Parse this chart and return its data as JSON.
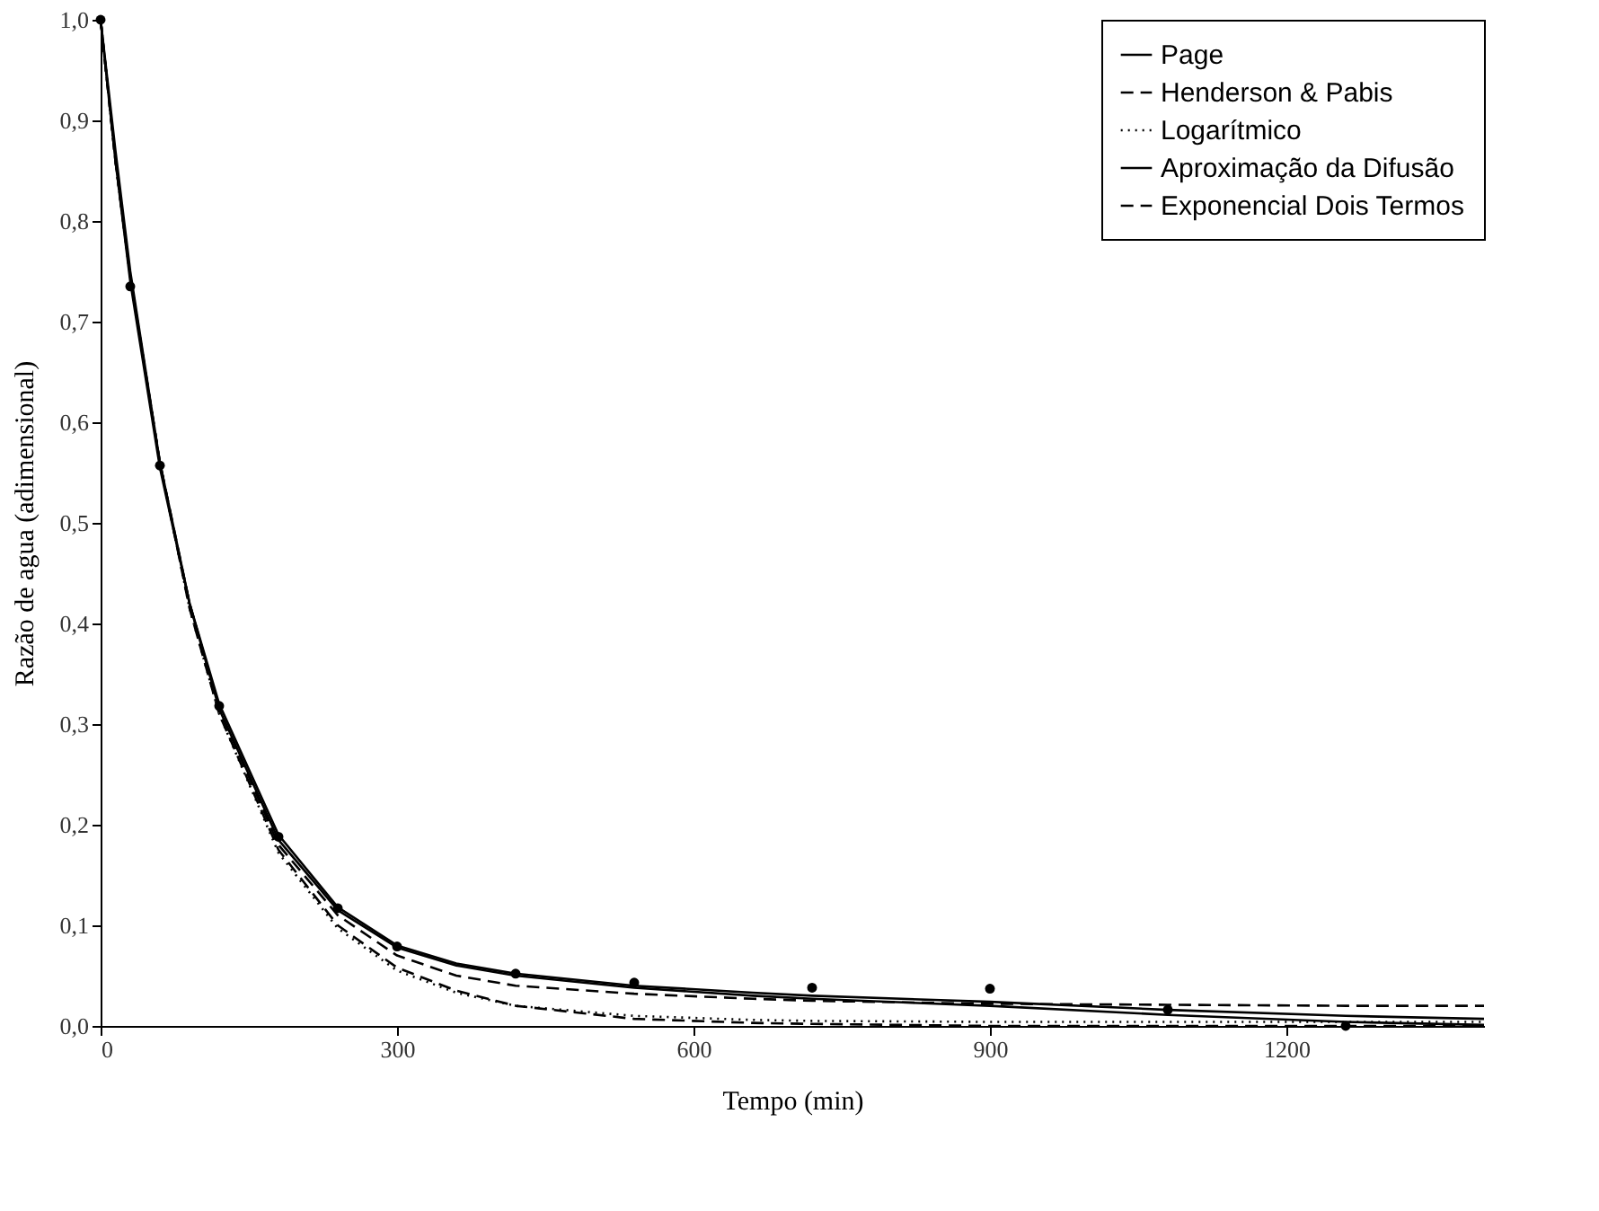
{
  "chart_data": {
    "type": "line",
    "xlabel": "Tempo (min)",
    "ylabel": "Razão de agua (adimensional)",
    "x": [
      0,
      15,
      30,
      60,
      90,
      120,
      180,
      240,
      300,
      360,
      420,
      540,
      660,
      720,
      900,
      1080,
      1260,
      1400
    ],
    "xlim": [
      0,
      1400
    ],
    "xticks": [
      0,
      300,
      600,
      900,
      1200
    ],
    "ylim": [
      0,
      1
    ],
    "yticks": [
      {
        "value": 0,
        "label": "0,0"
      },
      {
        "value": 0.1,
        "label": "0,1"
      },
      {
        "value": 0.2,
        "label": "0,2"
      },
      {
        "value": 0.3,
        "label": "0,3"
      },
      {
        "value": 0.4,
        "label": "0,4"
      },
      {
        "value": 0.5,
        "label": "0,5"
      },
      {
        "value": 0.6,
        "label": "0,6"
      },
      {
        "value": 0.7,
        "label": "0,7"
      },
      {
        "value": 0.8,
        "label": "0,8"
      },
      {
        "value": 0.9,
        "label": "0,9"
      },
      {
        "value": 1,
        "label": "1,0"
      }
    ],
    "grid": false,
    "legend": "top right",
    "series": [
      {
        "name": "Page",
        "color": "#000000",
        "line_style": "solid",
        "values": [
          1,
          0.86,
          0.74,
          0.555,
          0.42,
          0.32,
          0.19,
          0.118,
          0.08,
          0.062,
          0.052,
          0.04,
          0.033,
          0.03,
          0.024,
          0.016,
          0.01,
          0.007
        ]
      },
      {
        "name": "Henderson & Pabis",
        "color": "#000000",
        "line_style": "dashed",
        "values": [
          1,
          0.86,
          0.745,
          0.56,
          0.415,
          0.31,
          0.175,
          0.1,
          0.058,
          0.035,
          0.02,
          0.007,
          0.003,
          0.002,
          0,
          0,
          0,
          0
        ]
      },
      {
        "name": "Logarítmico",
        "color": "#000000",
        "line_style": "dotted",
        "values": [
          1,
          0.86,
          0.745,
          0.56,
          0.415,
          0.31,
          0.172,
          0.097,
          0.055,
          0.033,
          0.02,
          0.01,
          0.006,
          0.005,
          0.004,
          0.004,
          0.004,
          0.004
        ]
      },
      {
        "name": "Aproximação da Difusão",
        "color": "#000000",
        "line_style": "solid",
        "values": [
          1,
          0.87,
          0.75,
          0.56,
          0.42,
          0.315,
          0.185,
          0.115,
          0.078,
          0.06,
          0.05,
          0.038,
          0.03,
          0.027,
          0.02,
          0.011,
          0.004,
          0.001
        ]
      },
      {
        "name": "Exponencial Dois Termos",
        "color": "#000000",
        "line_style": "dashed",
        "values": [
          1,
          0.86,
          0.745,
          0.56,
          0.42,
          0.315,
          0.18,
          0.11,
          0.07,
          0.05,
          0.04,
          0.032,
          0.027,
          0.025,
          0.022,
          0.021,
          0.02,
          0.02
        ]
      },
      {
        "type": "scatter",
        "marker": "circle",
        "color": "#000000",
        "x": [
          0,
          30,
          60,
          120,
          180,
          240,
          300,
          420,
          540,
          720,
          900,
          1080,
          1260
        ],
        "values": [
          1,
          0.735,
          0.557,
          0.318,
          0.188,
          0.117,
          0.079,
          0.052,
          0.043,
          0.038,
          0.037,
          0.016,
          0
        ]
      }
    ]
  }
}
